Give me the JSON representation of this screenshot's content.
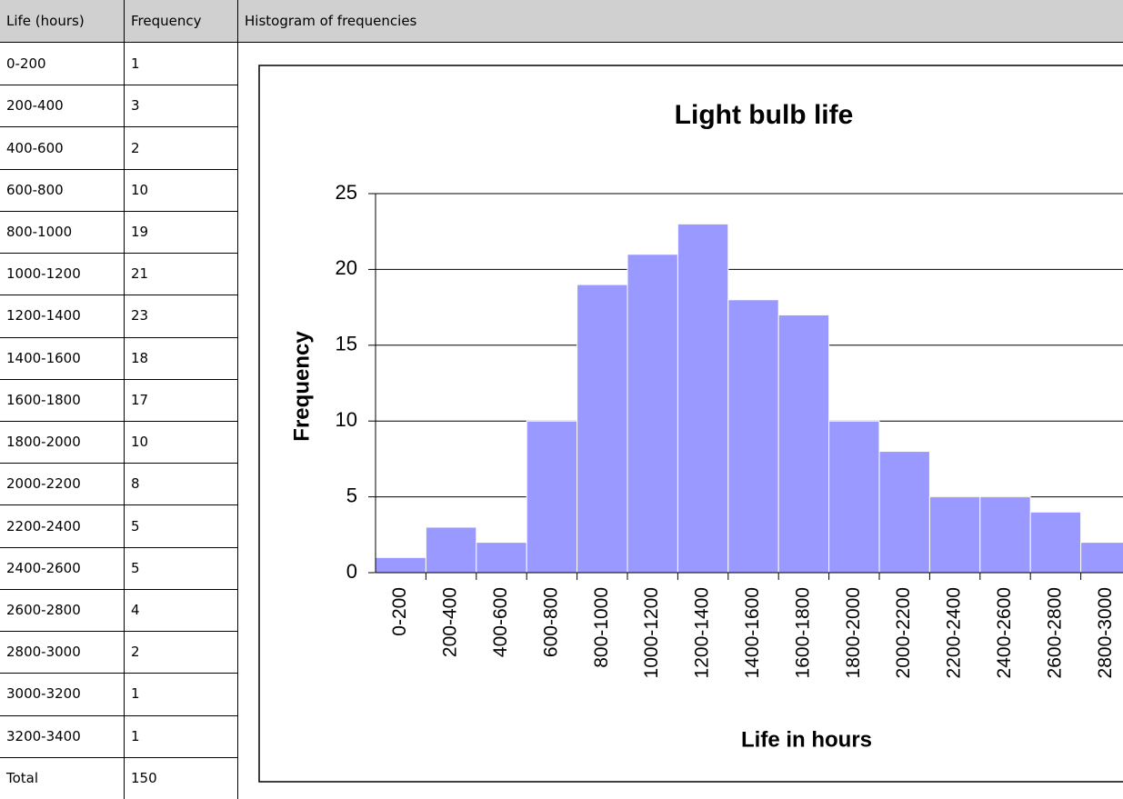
{
  "table": {
    "header": [
      "Life (hours)",
      "Frequency"
    ],
    "rows": [
      [
        "0-200",
        1
      ],
      [
        "200-400",
        3
      ],
      [
        "400-600",
        2
      ],
      [
        "600-800",
        10
      ],
      [
        "800-1000",
        19
      ],
      [
        "1000-1200",
        21
      ],
      [
        "1200-1400",
        23
      ],
      [
        "1400-1600",
        18
      ],
      [
        "1600-1800",
        17
      ],
      [
        "1800-2000",
        10
      ],
      [
        "2000-2200",
        8
      ],
      [
        "2200-2400",
        5
      ],
      [
        "2400-2600",
        5
      ],
      [
        "2600-2800",
        4
      ],
      [
        "2800-3000",
        2
      ],
      [
        "3000-3200",
        1
      ],
      [
        "3200-3400",
        1
      ],
      [
        "Total",
        150
      ]
    ]
  },
  "chart_header": "Histogram of frequencies",
  "chart_data": {
    "type": "bar",
    "title": "Light bulb life",
    "x_label": "Life in hours",
    "y_label": "Frequency",
    "categories": [
      "0-200",
      "200-400",
      "400-600",
      "600-800",
      "800-1000",
      "1000-1200",
      "1200-1400",
      "1400-1600",
      "1600-1800",
      "1800-2000",
      "2000-2200",
      "2200-2400",
      "2400-2600",
      "2600-2800",
      "2800-3000"
    ],
    "values": [
      1,
      3,
      2,
      10,
      19,
      21,
      23,
      18,
      17,
      10,
      8,
      5,
      5,
      4,
      2
    ],
    "color": "#9999ff",
    "ylim": [
      0,
      25
    ],
    "yticks": [
      0,
      5,
      10,
      15,
      20,
      25
    ],
    "grid": true
  }
}
